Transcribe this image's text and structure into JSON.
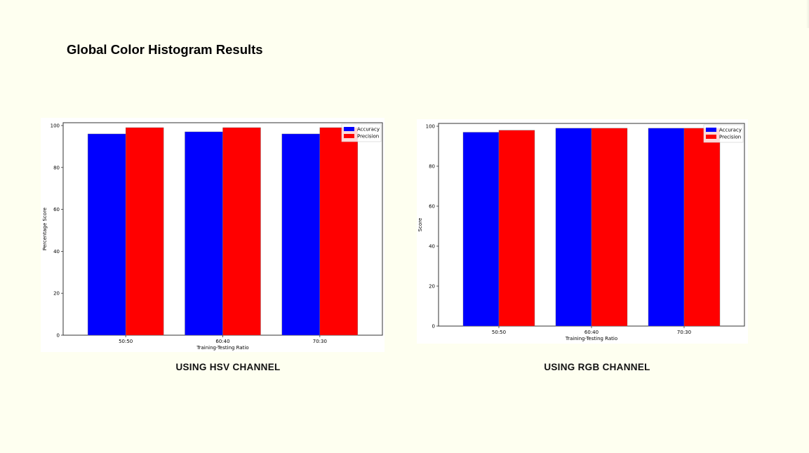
{
  "slide": {
    "title": "Global Color Histogram Results"
  },
  "captions": {
    "hsv": "USING HSV CHANNEL",
    "rgb": "USING RGB CHANNEL"
  },
  "chart_data": [
    {
      "id": "hsv",
      "type": "bar",
      "categories": [
        "50:50",
        "60:40",
        "70:30"
      ],
      "series": [
        {
          "name": "Accuracy",
          "values": [
            96,
            97,
            96
          ],
          "color": "#0000ff"
        },
        {
          "name": "Precision",
          "values": [
            99,
            99,
            99
          ],
          "color": "#ff0000"
        }
      ],
      "xlabel": "Training-Testing Ratio",
      "ylabel": "Percentage Score",
      "ylim": [
        0,
        100
      ],
      "yticks": [
        0,
        20,
        40,
        60,
        80,
        100
      ],
      "legend": "top-right",
      "grid": false
    },
    {
      "id": "rgb",
      "type": "bar",
      "categories": [
        "50:50",
        "60:40",
        "70:30"
      ],
      "series": [
        {
          "name": "Accuracy",
          "values": [
            97,
            99,
            99
          ],
          "color": "#0000ff"
        },
        {
          "name": "Precision",
          "values": [
            98,
            99,
            99
          ],
          "color": "#ff0000"
        }
      ],
      "xlabel": "Training-Testing Ratio",
      "ylabel": "Score",
      "ylim": [
        0,
        100
      ],
      "yticks": [
        0,
        20,
        40,
        60,
        80,
        100
      ],
      "legend": "top-right",
      "grid": false
    }
  ]
}
